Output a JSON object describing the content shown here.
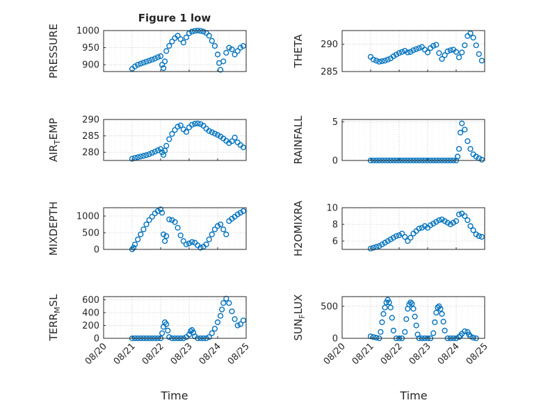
{
  "figure": {
    "title": "Figure 1 low",
    "xlabel": "Time"
  },
  "chart_data": [
    {
      "type": "scatter",
      "ylabel": "PRESSURE",
      "ylim": [
        880,
        1000
      ],
      "yticks": [
        "900",
        "950",
        "1000"
      ],
      "xticks": [],
      "grid": true,
      "x": [
        21.0,
        21.1,
        21.2,
        21.3,
        21.4,
        21.5,
        21.6,
        21.7,
        21.8,
        21.9,
        22.0,
        22.05,
        22.1,
        22.15,
        22.2,
        22.3,
        22.4,
        22.5,
        22.6,
        22.7,
        22.8,
        22.9,
        23.0,
        23.1,
        23.2,
        23.3,
        23.4,
        23.5,
        23.6,
        23.7,
        23.8,
        23.9,
        24.0,
        24.05,
        24.1,
        24.2,
        24.3,
        24.4,
        24.5,
        24.6,
        24.7,
        24.8,
        24.9
      ],
      "y": [
        888,
        895,
        900,
        903,
        906,
        909,
        912,
        915,
        918,
        922,
        925,
        900,
        890,
        910,
        940,
        955,
        968,
        978,
        985,
        975,
        965,
        980,
        992,
        997,
        999,
        1000,
        999,
        997,
        993,
        985,
        970,
        955,
        930,
        905,
        885,
        910,
        935,
        950,
        945,
        930,
        940,
        950,
        955
      ]
    },
    {
      "type": "scatter",
      "ylabel": "THETA",
      "ylim": [
        285,
        292.5
      ],
      "yticks": [
        "285",
        "290"
      ],
      "xticks": [],
      "grid": true,
      "x": [
        21.0,
        21.1,
        21.2,
        21.3,
        21.4,
        21.5,
        21.6,
        21.7,
        21.8,
        21.9,
        22.0,
        22.1,
        22.2,
        22.3,
        22.4,
        22.5,
        22.6,
        22.7,
        22.8,
        22.9,
        23.0,
        23.1,
        23.2,
        23.3,
        23.4,
        23.5,
        23.6,
        23.7,
        23.8,
        23.9,
        24.0,
        24.1,
        24.2,
        24.3,
        24.4,
        24.5,
        24.6,
        24.7,
        24.8,
        24.9
      ],
      "y": [
        287.7,
        287.2,
        287.0,
        286.8,
        286.9,
        287.0,
        287.2,
        287.4,
        287.8,
        288.1,
        288.4,
        288.6,
        288.8,
        288.5,
        288.6,
        288.9,
        289.1,
        289.3,
        289.5,
        289.0,
        288.5,
        289.3,
        289.7,
        289.9,
        288.4,
        287.3,
        288.0,
        288.7,
        288.9,
        289.0,
        288.6,
        287.6,
        288.5,
        289.8,
        291.5,
        292.0,
        291.2,
        289.8,
        288.2,
        287.0
      ]
    },
    {
      "type": "scatter",
      "ylabel": "AIR_TEMP",
      "ylim": [
        277.5,
        290
      ],
      "yticks": [
        "280",
        "285",
        "290"
      ],
      "xticks": [],
      "grid": true,
      "x": [
        21.0,
        21.1,
        21.2,
        21.3,
        21.4,
        21.5,
        21.6,
        21.7,
        21.8,
        21.9,
        22.0,
        22.05,
        22.1,
        22.15,
        22.2,
        22.3,
        22.4,
        22.5,
        22.6,
        22.7,
        22.8,
        22.9,
        23.0,
        23.1,
        23.2,
        23.3,
        23.4,
        23.5,
        23.6,
        23.7,
        23.8,
        23.9,
        24.0,
        24.1,
        24.2,
        24.3,
        24.4,
        24.5,
        24.6,
        24.7,
        24.8,
        24.9
      ],
      "y": [
        278.0,
        278.3,
        278.5,
        278.7,
        278.9,
        279.1,
        279.4,
        279.8,
        280.2,
        280.6,
        281.0,
        280.0,
        279.2,
        280.5,
        282.0,
        284.0,
        285.6,
        286.8,
        287.8,
        288.2,
        287.0,
        286.2,
        287.6,
        288.4,
        288.7,
        288.8,
        288.6,
        288.1,
        287.2,
        286.5,
        286.1,
        285.7,
        285.3,
        284.8,
        284.2,
        283.5,
        282.8,
        283.4,
        284.5,
        283.0,
        282.2,
        281.5
      ]
    },
    {
      "type": "scatter",
      "ylabel": "RAINFALL",
      "ylim": [
        0,
        5.3
      ],
      "yticks": [
        "0",
        "5"
      ],
      "xticks": [],
      "grid": true,
      "x": [
        21.0,
        21.1,
        21.2,
        21.3,
        21.4,
        21.5,
        21.6,
        21.7,
        21.8,
        21.9,
        22.0,
        22.1,
        22.2,
        22.3,
        22.4,
        22.5,
        22.6,
        22.7,
        22.8,
        22.9,
        23.0,
        23.1,
        23.2,
        23.3,
        23.4,
        23.5,
        23.6,
        23.7,
        23.8,
        23.9,
        24.0,
        24.05,
        24.1,
        24.15,
        24.2,
        24.3,
        24.4,
        24.5,
        24.6,
        24.7,
        24.8,
        24.9
      ],
      "y": [
        0,
        0,
        0,
        0,
        0,
        0,
        0,
        0,
        0,
        0,
        0,
        0,
        0,
        0,
        0,
        0,
        0,
        0,
        0,
        0,
        0,
        0,
        0,
        0,
        0,
        0,
        0,
        0,
        0,
        0,
        0,
        0.5,
        1.5,
        3.6,
        4.8,
        4.0,
        2.5,
        1.5,
        0.8,
        0.5,
        0.3,
        0.1
      ]
    },
    {
      "type": "scatter",
      "ylabel": "MIXDEPTH",
      "ylim": [
        0,
        1250
      ],
      "yticks": [
        "0",
        "500",
        "1000"
      ],
      "xticks": [],
      "grid": true,
      "x": [
        21.0,
        21.05,
        21.1,
        21.2,
        21.3,
        21.4,
        21.5,
        21.6,
        21.7,
        21.8,
        21.9,
        22.0,
        22.05,
        22.1,
        22.15,
        22.2,
        22.3,
        22.4,
        22.5,
        22.6,
        22.7,
        22.8,
        22.9,
        23.0,
        23.1,
        23.2,
        23.3,
        23.4,
        23.5,
        23.6,
        23.7,
        23.8,
        23.9,
        24.0,
        24.1,
        24.2,
        24.3,
        24.4,
        24.5,
        24.6,
        24.7,
        24.8,
        24.9
      ],
      "y": [
        0,
        50,
        150,
        300,
        450,
        600,
        750,
        880,
        980,
        1080,
        1150,
        1200,
        1100,
        450,
        250,
        400,
        900,
        880,
        820,
        650,
        420,
        250,
        150,
        180,
        220,
        200,
        120,
        50,
        80,
        150,
        300,
        450,
        600,
        700,
        750,
        600,
        450,
        850,
        920,
        980,
        1050,
        1100,
        1150
      ]
    },
    {
      "type": "scatter",
      "ylabel": "H2OMIXRA",
      "ylim": [
        5,
        10
      ],
      "yticks": [
        "6",
        "8",
        "10"
      ],
      "xticks": [],
      "grid": true,
      "x": [
        21.0,
        21.1,
        21.2,
        21.3,
        21.4,
        21.5,
        21.6,
        21.7,
        21.8,
        21.9,
        22.0,
        22.1,
        22.2,
        22.3,
        22.4,
        22.5,
        22.6,
        22.7,
        22.8,
        22.9,
        23.0,
        23.1,
        23.2,
        23.3,
        23.4,
        23.5,
        23.6,
        23.7,
        23.8,
        23.9,
        24.0,
        24.1,
        24.2,
        24.3,
        24.4,
        24.5,
        24.6,
        24.7,
        24.8,
        24.9
      ],
      "y": [
        5.1,
        5.2,
        5.3,
        5.4,
        5.6,
        5.8,
        6.0,
        6.2,
        6.4,
        6.6,
        6.7,
        6.9,
        6.5,
        6.0,
        6.4,
        6.9,
        7.2,
        7.5,
        7.6,
        7.8,
        7.6,
        7.9,
        8.1,
        8.3,
        8.5,
        8.6,
        8.4,
        8.2,
        8.0,
        8.2,
        8.4,
        9.2,
        9.3,
        9.0,
        8.5,
        7.8,
        7.3,
        6.8,
        6.6,
        6.5
      ]
    },
    {
      "type": "scatter",
      "ylabel": "TERR_MSL",
      "ylim": [
        0,
        650
      ],
      "yticks": [
        "0",
        "200",
        "400",
        "600"
      ],
      "xticks": [
        "08/20",
        "08/21",
        "08/22",
        "08/23",
        "08/24",
        "08/25"
      ],
      "grid": true,
      "x": [
        21.0,
        21.1,
        21.2,
        21.3,
        21.4,
        21.5,
        21.6,
        21.7,
        21.8,
        21.9,
        22.0,
        22.05,
        22.1,
        22.15,
        22.2,
        22.25,
        22.3,
        22.4,
        22.5,
        22.6,
        22.7,
        22.8,
        22.9,
        23.0,
        23.05,
        23.1,
        23.15,
        23.2,
        23.3,
        23.4,
        23.5,
        23.6,
        23.7,
        23.8,
        23.9,
        24.0,
        24.1,
        24.15,
        24.2,
        24.3,
        24.4,
        24.5,
        24.6,
        24.7,
        24.8,
        24.9
      ],
      "y": [
        0,
        0,
        0,
        0,
        0,
        0,
        0,
        0,
        0,
        0,
        0,
        80,
        180,
        250,
        220,
        120,
        20,
        0,
        0,
        0,
        0,
        0,
        20,
        60,
        110,
        130,
        90,
        30,
        0,
        0,
        0,
        0,
        20,
        80,
        150,
        250,
        350,
        450,
        550,
        620,
        550,
        420,
        300,
        200,
        220,
        280
      ]
    },
    {
      "type": "scatter",
      "ylabel": "SUN_FLUX",
      "ylim": [
        0,
        650
      ],
      "yticks": [
        "0",
        "500"
      ],
      "xticks": [
        "08/20",
        "08/21",
        "08/22",
        "08/23",
        "08/24",
        "08/25"
      ],
      "grid": true,
      "x": [
        21.0,
        21.1,
        21.2,
        21.3,
        21.35,
        21.4,
        21.45,
        21.5,
        21.55,
        21.6,
        21.65,
        21.7,
        21.75,
        21.8,
        21.9,
        22.0,
        22.1,
        22.2,
        22.25,
        22.3,
        22.35,
        22.4,
        22.45,
        22.5,
        22.55,
        22.6,
        22.65,
        22.7,
        22.8,
        22.9,
        23.0,
        23.1,
        23.2,
        23.25,
        23.3,
        23.35,
        23.4,
        23.45,
        23.5,
        23.55,
        23.6,
        23.7,
        23.8,
        23.9,
        24.0,
        24.1,
        24.15,
        24.2,
        24.3,
        24.4,
        24.45,
        24.5,
        24.6,
        24.7
      ],
      "y": [
        30,
        20,
        10,
        0,
        100,
        250,
        380,
        480,
        560,
        600,
        560,
        480,
        320,
        120,
        0,
        0,
        0,
        100,
        300,
        460,
        530,
        560,
        540,
        460,
        340,
        200,
        60,
        0,
        0,
        0,
        0,
        0,
        80,
        250,
        400,
        480,
        500,
        460,
        380,
        260,
        120,
        0,
        0,
        0,
        0,
        20,
        40,
        70,
        110,
        100,
        60,
        30,
        10,
        0
      ]
    }
  ]
}
